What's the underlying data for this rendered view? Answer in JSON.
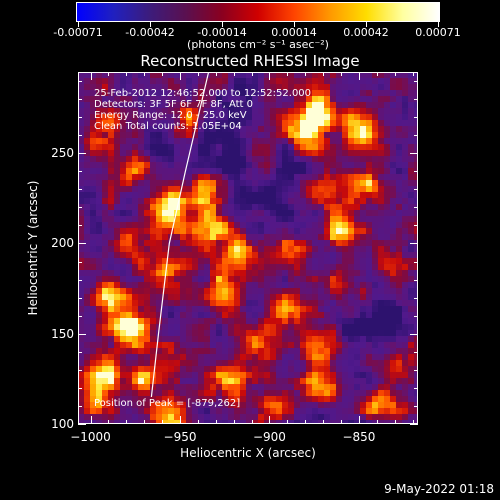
{
  "colorbar": {
    "labels": [
      "-0.00071",
      "-0.00042",
      "-0.00014",
      "0.00014",
      "0.00042",
      "0.00071"
    ],
    "units": "(photons cm⁻² s⁻¹ asec⁻²)",
    "colors": [
      "#0000ff",
      "#2020c0",
      "#3c1c7c",
      "#5a1050",
      "#8a0020",
      "#d00000",
      "#ff4400",
      "#ff9900",
      "#ffdd00",
      "#ffffa0",
      "#ffffff"
    ]
  },
  "chart_data": {
    "type": "heatmap",
    "title": "Reconstructed RHESSI Image",
    "xlabel": "Heliocentric X (arcsec)",
    "ylabel": "Heliocentric Y (arcsec)",
    "xlim": [
      -1007,
      -817
    ],
    "ylim": [
      100,
      295
    ],
    "xticks": [
      -1000,
      -950,
      -900,
      -850
    ],
    "xtick_labels": [
      "−1000",
      "−950",
      "−900",
      "−850"
    ],
    "yticks": [
      100,
      150,
      200,
      250
    ],
    "ytick_labels": [
      "100",
      "150",
      "200",
      "250"
    ],
    "color_range": [
      -0.00071,
      0.00071
    ],
    "annotations": [
      "25-Feb-2012 12:46:52.000 to 12:52:52.000",
      "Detectors: 3F 5F 6F 7F 8F, Att 0",
      "Energy Range: 12.0 - 25.0 keV",
      "Clean    Total counts: 1.05E+04"
    ],
    "peak_label": "Position of Peak = [-879,262]",
    "peak_position": [
      -879,
      262
    ],
    "limb_points": [
      [
        -934,
        295
      ],
      [
        -947,
        240
      ],
      [
        -956,
        200
      ],
      [
        -962,
        150
      ],
      [
        -966,
        115
      ]
    ],
    "hotspots": [
      [
        -879,
        262,
        1.0
      ],
      [
        -873,
        275,
        0.85
      ],
      [
        -850,
        262,
        0.8
      ],
      [
        -845,
        230,
        0.7
      ],
      [
        -860,
        205,
        0.65
      ],
      [
        -888,
        195,
        0.55
      ],
      [
        -890,
        165,
        0.75
      ],
      [
        -875,
        145,
        0.85
      ],
      [
        -873,
        120,
        0.8
      ],
      [
        -830,
        130,
        0.55
      ],
      [
        -838,
        110,
        0.7
      ],
      [
        -900,
        110,
        0.6
      ],
      [
        -905,
        145,
        0.7
      ],
      [
        -925,
        175,
        0.55
      ],
      [
        -915,
        195,
        0.75
      ],
      [
        -933,
        210,
        0.85
      ],
      [
        -937,
        230,
        0.7
      ],
      [
        -905,
        240,
        0.5
      ],
      [
        -955,
        218,
        0.95
      ],
      [
        -958,
        185,
        0.55
      ],
      [
        -975,
        240,
        0.55
      ],
      [
        -990,
        262,
        0.65
      ],
      [
        -980,
        200,
        0.55
      ],
      [
        -990,
        170,
        0.6
      ],
      [
        -978,
        155,
        0.95
      ],
      [
        -990,
        130,
        0.65
      ],
      [
        -968,
        125,
        0.65
      ],
      [
        -955,
        105,
        0.55
      ],
      [
        -943,
        270,
        0.7
      ],
      [
        -995,
        115,
        0.5
      ],
      [
        -925,
        125,
        0.5
      ],
      [
        -855,
        175,
        0.6
      ],
      [
        -830,
        185,
        0.5
      ],
      [
        -870,
        230,
        0.55
      ]
    ],
    "cold_regions": [
      [
        -900,
        230,
        0.9
      ],
      [
        -845,
        160,
        0.85
      ],
      [
        -925,
        265,
        0.6
      ],
      [
        -865,
        105,
        0.5
      ],
      [
        -960,
        255,
        0.55
      ]
    ]
  },
  "footer": {
    "date": "9-May-2022 01:18"
  }
}
